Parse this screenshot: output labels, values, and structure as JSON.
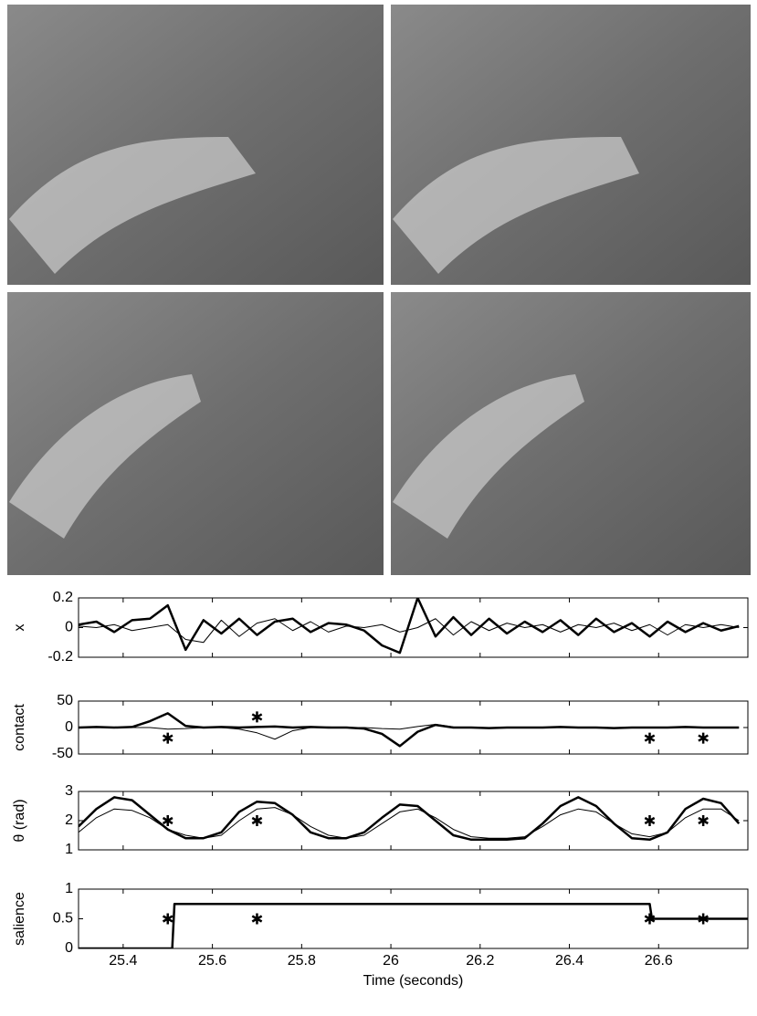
{
  "chart_data": [
    {
      "type": "line",
      "ylabel": "x",
      "ylim": [
        -0.2,
        0.2
      ],
      "yticks": [
        0.2,
        0,
        -0.2
      ],
      "x": [
        25.3,
        25.34,
        25.38,
        25.42,
        25.46,
        25.5,
        25.54,
        25.58,
        25.62,
        25.66,
        25.7,
        25.74,
        25.78,
        25.82,
        25.86,
        25.9,
        25.94,
        25.98,
        26.02,
        26.06,
        26.1,
        26.14,
        26.18,
        26.22,
        26.26,
        26.3,
        26.34,
        26.38,
        26.42,
        26.46,
        26.5,
        26.54,
        26.58,
        26.62,
        26.66,
        26.7,
        26.74,
        26.78
      ],
      "series": [
        {
          "color": "#000",
          "linewidth": 2.5,
          "values": [
            0.02,
            0.04,
            -0.03,
            0.05,
            0.06,
            0.15,
            -0.15,
            0.05,
            -0.04,
            0.06,
            -0.05,
            0.04,
            0.06,
            -0.03,
            0.03,
            0.02,
            -0.02,
            -0.12,
            -0.17,
            0.2,
            -0.06,
            0.07,
            -0.05,
            0.06,
            -0.04,
            0.04,
            -0.03,
            0.05,
            -0.05,
            0.06,
            -0.03,
            0.03,
            -0.06,
            0.04,
            -0.03,
            0.03,
            -0.02,
            0.01
          ]
        },
        {
          "color": "#000",
          "linewidth": 1,
          "values": [
            0.01,
            0.0,
            0.02,
            -0.02,
            0.0,
            0.02,
            -0.08,
            -0.1,
            0.05,
            -0.06,
            0.03,
            0.06,
            -0.02,
            0.04,
            -0.03,
            0.01,
            0.0,
            0.02,
            -0.03,
            0.0,
            0.06,
            -0.05,
            0.04,
            -0.02,
            0.03,
            0.0,
            0.02,
            -0.03,
            0.02,
            0.0,
            0.03,
            -0.02,
            0.02,
            -0.05,
            0.02,
            0.0,
            0.02,
            0.0
          ]
        }
      ]
    },
    {
      "type": "line",
      "ylabel": "contact",
      "ylim": [
        -50,
        50
      ],
      "yticks": [
        50,
        0,
        -50
      ],
      "x": [
        25.3,
        25.34,
        25.38,
        25.42,
        25.46,
        25.5,
        25.54,
        25.58,
        25.62,
        25.66,
        25.7,
        25.74,
        25.78,
        25.82,
        25.86,
        25.9,
        25.94,
        25.98,
        26.02,
        26.06,
        26.1,
        26.14,
        26.18,
        26.22,
        26.26,
        26.3,
        26.34,
        26.38,
        26.42,
        26.46,
        26.5,
        26.54,
        26.58,
        26.62,
        26.66,
        26.7,
        26.74,
        26.78
      ],
      "series": [
        {
          "color": "#000",
          "linewidth": 2.5,
          "values": [
            0,
            1,
            0,
            1,
            12,
            27,
            3,
            0,
            1,
            0,
            1,
            2,
            0,
            1,
            0,
            0,
            -2,
            -12,
            -35,
            -8,
            5,
            0,
            0,
            -1,
            0,
            0,
            0,
            1,
            0,
            0,
            -1,
            0,
            0,
            0,
            1,
            0,
            0,
            0
          ]
        },
        {
          "color": "#000",
          "linewidth": 1,
          "values": [
            0,
            0,
            0,
            0,
            0,
            -3,
            -2,
            0,
            0,
            -3,
            -10,
            -22,
            -6,
            0,
            1,
            0,
            0,
            -2,
            -3,
            2,
            6,
            1,
            0,
            0,
            0,
            0,
            0,
            0,
            0,
            0,
            0,
            0,
            0,
            0,
            0,
            0,
            0,
            0
          ]
        }
      ],
      "markers": {
        "x": [
          25.5,
          25.7,
          26.58,
          26.7
        ],
        "y": [
          -20,
          20,
          -20,
          -20
        ]
      }
    },
    {
      "type": "line",
      "ylabel": "θ (rad)",
      "ylim": [
        1,
        3
      ],
      "yticks": [
        3,
        2,
        1
      ],
      "x": [
        25.3,
        25.34,
        25.38,
        25.42,
        25.46,
        25.5,
        25.54,
        25.58,
        25.62,
        25.66,
        25.7,
        25.74,
        25.78,
        25.82,
        25.86,
        25.9,
        25.94,
        25.98,
        26.02,
        26.06,
        26.1,
        26.14,
        26.18,
        26.22,
        26.26,
        26.3,
        26.34,
        26.38,
        26.42,
        26.46,
        26.5,
        26.54,
        26.58,
        26.62,
        26.66,
        26.7,
        26.74,
        26.78
      ],
      "series": [
        {
          "color": "#000",
          "linewidth": 2.5,
          "values": [
            1.8,
            2.4,
            2.8,
            2.7,
            2.2,
            1.7,
            1.4,
            1.4,
            1.6,
            2.3,
            2.65,
            2.6,
            2.2,
            1.6,
            1.4,
            1.4,
            1.6,
            2.1,
            2.55,
            2.5,
            2.0,
            1.5,
            1.35,
            1.35,
            1.35,
            1.4,
            1.9,
            2.5,
            2.8,
            2.5,
            1.9,
            1.4,
            1.35,
            1.6,
            2.4,
            2.75,
            2.6,
            1.9
          ]
        },
        {
          "color": "#000",
          "linewidth": 1,
          "values": [
            1.6,
            2.1,
            2.4,
            2.35,
            2.1,
            1.7,
            1.5,
            1.4,
            1.5,
            2.0,
            2.4,
            2.45,
            2.2,
            1.8,
            1.5,
            1.4,
            1.5,
            1.9,
            2.3,
            2.4,
            2.1,
            1.7,
            1.45,
            1.4,
            1.4,
            1.45,
            1.8,
            2.2,
            2.4,
            2.3,
            1.9,
            1.55,
            1.45,
            1.6,
            2.1,
            2.4,
            2.4,
            2.0
          ]
        }
      ],
      "markers": {
        "x": [
          25.5,
          25.7,
          26.58,
          26.7
        ],
        "y": [
          2,
          2,
          2,
          2
        ]
      }
    },
    {
      "type": "line",
      "ylabel": "salience",
      "xlabel": "Time (seconds)",
      "ylim": [
        0,
        1
      ],
      "yticks": [
        1,
        0.5,
        0
      ],
      "xlim": [
        25.3,
        26.8
      ],
      "xticks": [
        25.4,
        25.6,
        25.8,
        26,
        26.2,
        26.4,
        26.6
      ],
      "x": [
        25.3,
        25.51,
        25.515,
        26.58,
        26.585,
        26.8
      ],
      "series": [
        {
          "color": "#000",
          "linewidth": 2.5,
          "values": [
            0,
            0,
            0.75,
            0.75,
            0.5,
            0.5
          ]
        }
      ],
      "markers": {
        "x": [
          25.5,
          25.7,
          26.58,
          26.7
        ],
        "y": [
          0.5,
          0.5,
          0.5,
          0.5
        ]
      }
    }
  ]
}
